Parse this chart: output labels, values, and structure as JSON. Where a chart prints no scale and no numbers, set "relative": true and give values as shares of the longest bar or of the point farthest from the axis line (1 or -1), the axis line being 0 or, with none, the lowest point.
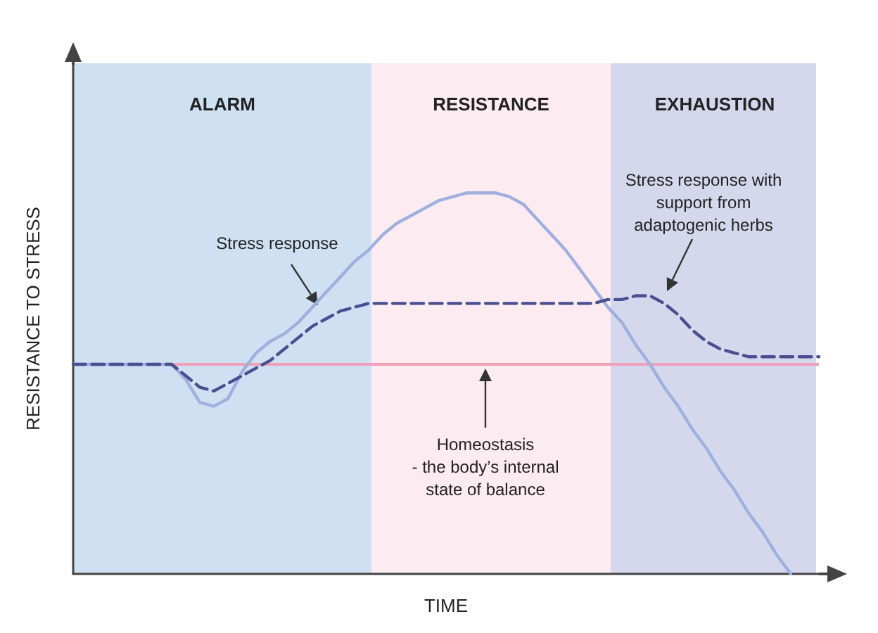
{
  "chart_data": {
    "type": "line",
    "relative": true,
    "xlabel": "TIME",
    "ylabel": "RESISTANCE TO STRESS",
    "grid": false,
    "marker": "none",
    "categories": [
      null,
      null,
      null,
      null,
      null,
      null,
      null,
      null,
      null,
      null,
      null,
      null,
      null,
      null,
      null,
      null,
      null,
      null,
      null,
      null,
      null,
      null,
      null,
      null,
      null,
      null,
      null,
      null,
      null,
      null,
      null,
      null,
      null,
      null,
      null,
      null,
      null,
      null,
      null,
      null,
      null,
      null,
      null,
      null,
      null,
      null,
      null,
      null,
      null,
      null,
      null,
      null,
      null,
      null
    ],
    "series": [
      {
        "color": "#9fb0de",
        "line_style": "solid",
        "values": [
          0.55,
          0.55,
          0.55,
          0.55,
          0.55,
          0.55,
          0.55,
          0.55,
          0.51,
          0.45,
          0.44,
          0.46,
          0.53,
          0.58,
          0.61,
          0.63,
          0.66,
          0.7,
          0.74,
          0.78,
          0.82,
          0.85,
          0.89,
          0.92,
          0.94,
          0.96,
          0.98,
          0.99,
          1,
          1,
          1,
          0.99,
          0.97,
          0.93,
          0.89,
          0.85,
          0.8,
          0.75,
          0.7,
          0.66,
          0.6,
          0.55,
          0.49,
          0.44,
          0.38,
          0.33,
          0.27,
          0.22,
          0.16,
          0.11,
          0.05,
          0,
          null,
          null
        ]
      },
      {
        "color": "#4a4f8f",
        "line_style": "dashed",
        "values": [
          0.55,
          0.55,
          0.55,
          0.55,
          0.55,
          0.55,
          0.55,
          0.55,
          0.52,
          0.49,
          0.48,
          0.5,
          0.52,
          0.54,
          0.56,
          0.59,
          0.62,
          0.65,
          0.67,
          0.69,
          0.7,
          0.71,
          0.71,
          0.71,
          0.71,
          0.71,
          0.71,
          0.71,
          0.71,
          0.71,
          0.71,
          0.71,
          0.71,
          0.71,
          0.71,
          0.71,
          0.71,
          0.71,
          0.72,
          0.72,
          0.73,
          0.73,
          0.71,
          0.68,
          0.64,
          0.61,
          0.59,
          0.58,
          0.57,
          0.57,
          0.57,
          0.57,
          0.57,
          0.57
        ]
      }
    ],
    "ref_lines": [
      {
        "axis": "y",
        "value": 0.55,
        "color": "#f0a0b8"
      }
    ],
    "annotations": [
      "ALARM",
      "RESISTANCE",
      "EXHAUSTION",
      "Stress response",
      "Stress response with\nsupport from\nadaptogenic herbs",
      "Homeostasis\n- the body’s internal\nstate of balance"
    ]
  }
}
